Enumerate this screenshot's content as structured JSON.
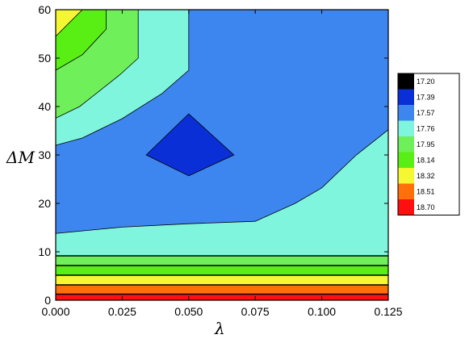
{
  "chart_data": {
    "type": "heatmap",
    "title": "",
    "xlabel": "λ",
    "ylabel": "ΔM",
    "xlim": [
      0.0,
      0.125
    ],
    "ylim": [
      0,
      60
    ],
    "x_ticks": [
      "0.000",
      "0.025",
      "0.050",
      "0.075",
      "0.100",
      "0.125"
    ],
    "y_ticks": [
      "0",
      "10",
      "20",
      "30",
      "40",
      "50",
      "60"
    ],
    "x_tick_values": [
      0.0,
      0.025,
      0.05,
      0.075,
      0.1,
      0.125
    ],
    "y_tick_values": [
      0,
      10,
      20,
      30,
      40,
      50,
      60
    ],
    "legend": {
      "position": "right",
      "levels": [
        {
          "label": "17.20",
          "color": "#000000"
        },
        {
          "label": "17.39",
          "color": "#0a2fd6"
        },
        {
          "label": "17.57",
          "color": "#3e86ef"
        },
        {
          "label": "17.76",
          "color": "#7ff5dd"
        },
        {
          "label": "17.95",
          "color": "#6fef5a"
        },
        {
          "label": "18.14",
          "color": "#5aef14"
        },
        {
          "label": "18.32",
          "color": "#f4f731"
        },
        {
          "label": "18.51",
          "color": "#ff6f0a"
        },
        {
          "label": "18.70",
          "color": "#ff1010"
        }
      ]
    },
    "regions": [
      {
        "level": "17.57",
        "color": "#3e86ef",
        "points": [
          [
            0,
            0
          ],
          [
            0.125,
            0
          ],
          [
            0.125,
            60
          ],
          [
            0,
            60
          ]
        ]
      },
      {
        "level": "17.76",
        "color": "#7ff5dd",
        "points": [
          [
            0,
            60
          ],
          [
            0,
            32
          ],
          [
            0.01,
            33.5
          ],
          [
            0.025,
            37.5
          ],
          [
            0.04,
            42.7
          ],
          [
            0.05,
            47.5
          ],
          [
            0.05,
            60
          ]
        ]
      },
      {
        "level": "17.95",
        "color": "#6fef5a",
        "points": [
          [
            0,
            60
          ],
          [
            0,
            37.6
          ],
          [
            0.009,
            40
          ],
          [
            0.024,
            46.5
          ],
          [
            0.031,
            50
          ],
          [
            0.031,
            60
          ]
        ]
      },
      {
        "level": "18.14",
        "color": "#5aef14",
        "points": [
          [
            0,
            60
          ],
          [
            0,
            47.5
          ],
          [
            0.01,
            50.7
          ],
          [
            0.019,
            56
          ],
          [
            0.019,
            60
          ]
        ]
      },
      {
        "level": "18.32",
        "color": "#f4f731",
        "points": [
          [
            0,
            60
          ],
          [
            0,
            54.5
          ],
          [
            0.01,
            60
          ]
        ]
      },
      {
        "level": "17.39",
        "color": "#0a2fd6",
        "points": [
          [
            0.034,
            30
          ],
          [
            0.05,
            38.5
          ],
          [
            0.067,
            30
          ],
          [
            0.05,
            25.7
          ]
        ]
      },
      {
        "level": "17.76",
        "color": "#7ff5dd",
        "points": [
          [
            0,
            0
          ],
          [
            0,
            13.8
          ],
          [
            0.025,
            15.1
          ],
          [
            0.05,
            15.8
          ],
          [
            0.075,
            16.3
          ],
          [
            0.09,
            20
          ],
          [
            0.1,
            23.2
          ],
          [
            0.113,
            30
          ],
          [
            0.125,
            35.2
          ],
          [
            0.125,
            0
          ]
        ]
      },
      {
        "level": "17.95",
        "color": "#6fef5a",
        "points": [
          [
            0,
            0
          ],
          [
            0,
            9.1
          ],
          [
            0.125,
            9.1
          ],
          [
            0.125,
            0
          ]
        ]
      },
      {
        "level": "18.14",
        "color": "#5aef14",
        "points": [
          [
            0,
            0
          ],
          [
            0,
            7.1
          ],
          [
            0.125,
            7.1
          ],
          [
            0.125,
            0
          ]
        ]
      },
      {
        "level": "18.32",
        "color": "#f4f731",
        "points": [
          [
            0,
            0
          ],
          [
            0,
            5.1
          ],
          [
            0.125,
            5.1
          ],
          [
            0.125,
            0
          ]
        ]
      },
      {
        "level": "18.51",
        "color": "#ff6f0a",
        "points": [
          [
            0,
            0
          ],
          [
            0,
            3.1
          ],
          [
            0.125,
            3.1
          ],
          [
            0.125,
            0
          ]
        ]
      },
      {
        "level": "18.70",
        "color": "#ff1010",
        "points": [
          [
            0,
            0
          ],
          [
            0,
            1.2
          ],
          [
            0.125,
            1.2
          ],
          [
            0.125,
            0
          ]
        ]
      }
    ],
    "contour_lines": [
      [
        [
          0,
          9.2
        ],
        [
          0.125,
          9.2
        ]
      ],
      [
        [
          0,
          7.2
        ],
        [
          0.125,
          7.2
        ]
      ],
      [
        [
          0,
          5.2
        ],
        [
          0.125,
          5.2
        ]
      ],
      [
        [
          0,
          3.2
        ],
        [
          0.125,
          3.2
        ]
      ],
      [
        [
          0,
          1.3
        ],
        [
          0.125,
          1.3
        ]
      ]
    ],
    "grid": false
  }
}
